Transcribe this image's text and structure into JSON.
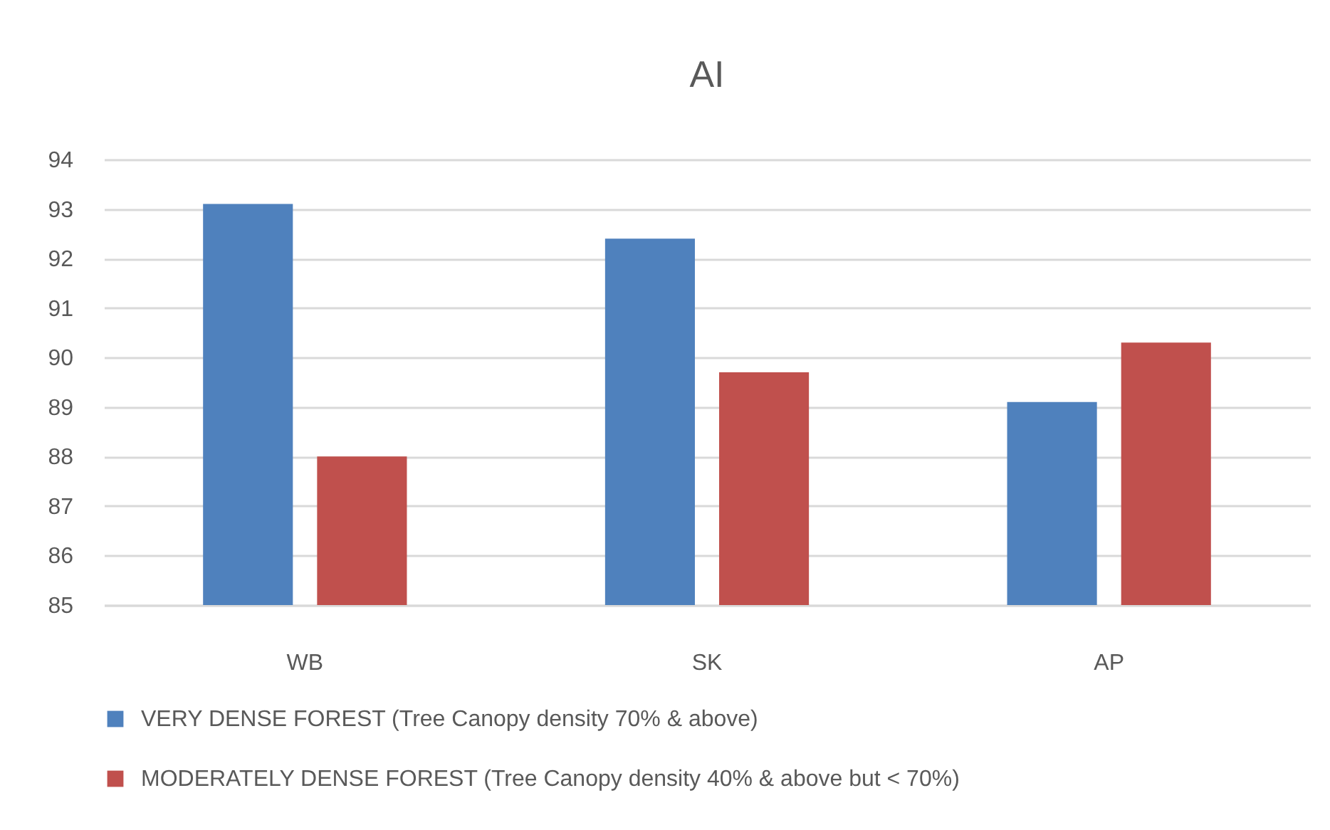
{
  "chart_data": {
    "type": "bar",
    "title": "AI",
    "categories": [
      "WB",
      "SK",
      "AP"
    ],
    "series": [
      {
        "name": "VERY DENSE FOREST (Tree Canopy density 70% & above)",
        "color": "#4f81bd",
        "values": [
          93.1,
          92.4,
          89.1
        ]
      },
      {
        "name": "MODERATELY DENSE FOREST (Tree Canopy density 40% & above but < 70%)",
        "color": "#c0504d",
        "values": [
          88.0,
          89.7,
          90.3
        ]
      }
    ],
    "ylim": [
      85,
      94
    ],
    "yticks": [
      85,
      86,
      87,
      88,
      89,
      90,
      91,
      92,
      93,
      94
    ],
    "grid": "y",
    "legend": "bottom"
  }
}
